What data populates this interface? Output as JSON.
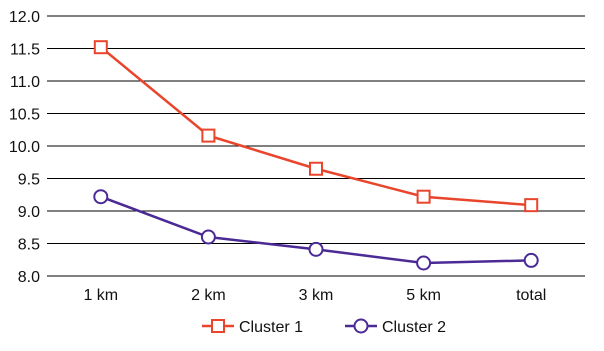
{
  "chart_data": {
    "type": "line",
    "categories": [
      "1 km",
      "2 km",
      "3 km",
      "5 km",
      "total"
    ],
    "series": [
      {
        "name": "Cluster 1",
        "values": [
          11.52,
          10.16,
          9.65,
          9.22,
          9.09
        ],
        "color": "#e8452c",
        "marker": "square"
      },
      {
        "name": "Cluster 2",
        "values": [
          9.22,
          8.6,
          8.41,
          8.2,
          8.24
        ],
        "color": "#4b2a96",
        "marker": "circle"
      }
    ],
    "yticks": [
      "8.0",
      "8.5",
      "9.0",
      "9.5",
      "10.0",
      "10.5",
      "11.0",
      "11.5",
      "12.0"
    ],
    "ylim": [
      8.0,
      12.0
    ],
    "grid": true,
    "legend_position": "bottom"
  }
}
